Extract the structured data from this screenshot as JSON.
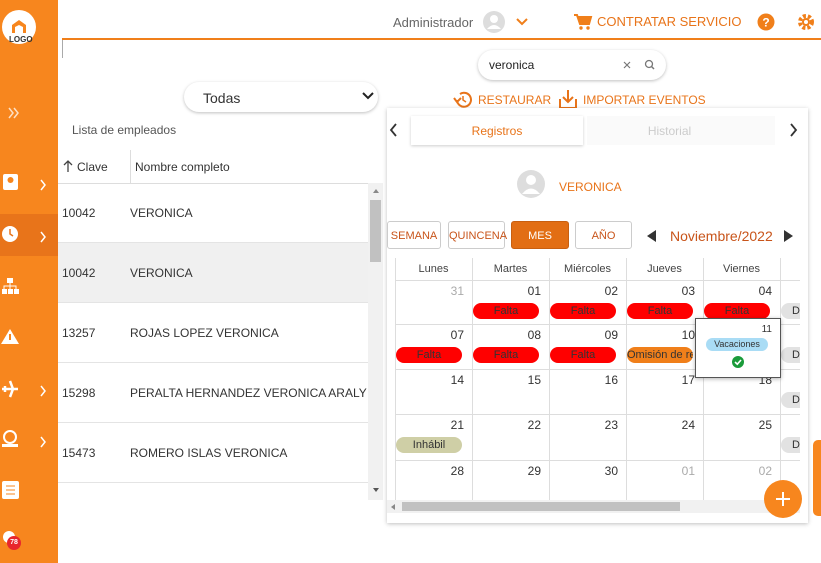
{
  "header": {
    "user": "Administrador",
    "service": "CONTRATAR SERVICIO"
  },
  "sidebar": {
    "logo": "LOGO",
    "badge": "78"
  },
  "search": {
    "query": "veronica"
  },
  "filter": {
    "selected": "Todas"
  },
  "actions": [
    "RESTAURAR",
    "IMPORTAR EVENTOS"
  ],
  "employee_list": {
    "title": "Lista de empleados",
    "columns": [
      "Clave",
      "Nombre completo"
    ],
    "rows": [
      [
        "10042",
        "VERONICA"
      ],
      [
        "10042",
        "VERONICA"
      ],
      [
        "13257",
        "ROJAS LOPEZ VERONICA"
      ],
      [
        "15298",
        "PERALTA HERNANDEZ VERONICA ARALY"
      ],
      [
        "15473",
        "ROMERO ISLAS VERONICA"
      ]
    ]
  },
  "tabs": [
    "Registros",
    "Historial"
  ],
  "selected_employee": "VERONICA",
  "views": [
    "SEMANA",
    "QUINCENA",
    "MES",
    "AÑO"
  ],
  "month": "Noviembre/2022",
  "calendar": {
    "weekdays": [
      "Lunes",
      "Martes",
      "Miércoles",
      "Jueves",
      "Viernes"
    ],
    "weeks": [
      {
        "days": [
          {
            "day": "31",
            "muted": true
          },
          {
            "day": "01",
            "event": {
              "label": "Falta",
              "color": "#ff0000"
            }
          },
          {
            "day": "02",
            "event": {
              "label": "Falta",
              "color": "#ff0000"
            }
          },
          {
            "day": "03",
            "event": {
              "label": "Falta",
              "color": "#ff0000"
            }
          },
          {
            "day": "04",
            "event": {
              "label": "Falta",
              "color": "#ff0000"
            }
          }
        ],
        "extra": "D"
      },
      {
        "days": [
          {
            "day": "07",
            "event": {
              "label": "Falta",
              "color": "#ff0000"
            }
          },
          {
            "day": "08",
            "event": {
              "label": "Falta",
              "color": "#ff0000"
            }
          },
          {
            "day": "09",
            "event": {
              "label": "Falta",
              "color": "#ff0000"
            }
          },
          {
            "day": "10",
            "event": {
              "label": "Omisión de re",
              "color": "#f07f1a"
            }
          },
          {
            "day": "11",
            "event": {
              "label": "Vacaciones",
              "color": "#a9dcf5"
            },
            "popup": true
          }
        ],
        "extra": "D"
      },
      {
        "days": [
          {
            "day": "14"
          },
          {
            "day": "15"
          },
          {
            "day": "16"
          },
          {
            "day": "17"
          },
          {
            "day": "18"
          }
        ],
        "extra": "D"
      },
      {
        "days": [
          {
            "day": "21",
            "event": {
              "label": "Inhábil",
              "color": "#cfcfa6"
            }
          },
          {
            "day": "22"
          },
          {
            "day": "23"
          },
          {
            "day": "24"
          },
          {
            "day": "25"
          }
        ],
        "extra": "D"
      },
      {
        "days": [
          {
            "day": "28"
          },
          {
            "day": "29"
          },
          {
            "day": "30"
          },
          {
            "day": "01",
            "muted": true
          },
          {
            "day": "02",
            "muted": true
          }
        ]
      }
    ]
  }
}
